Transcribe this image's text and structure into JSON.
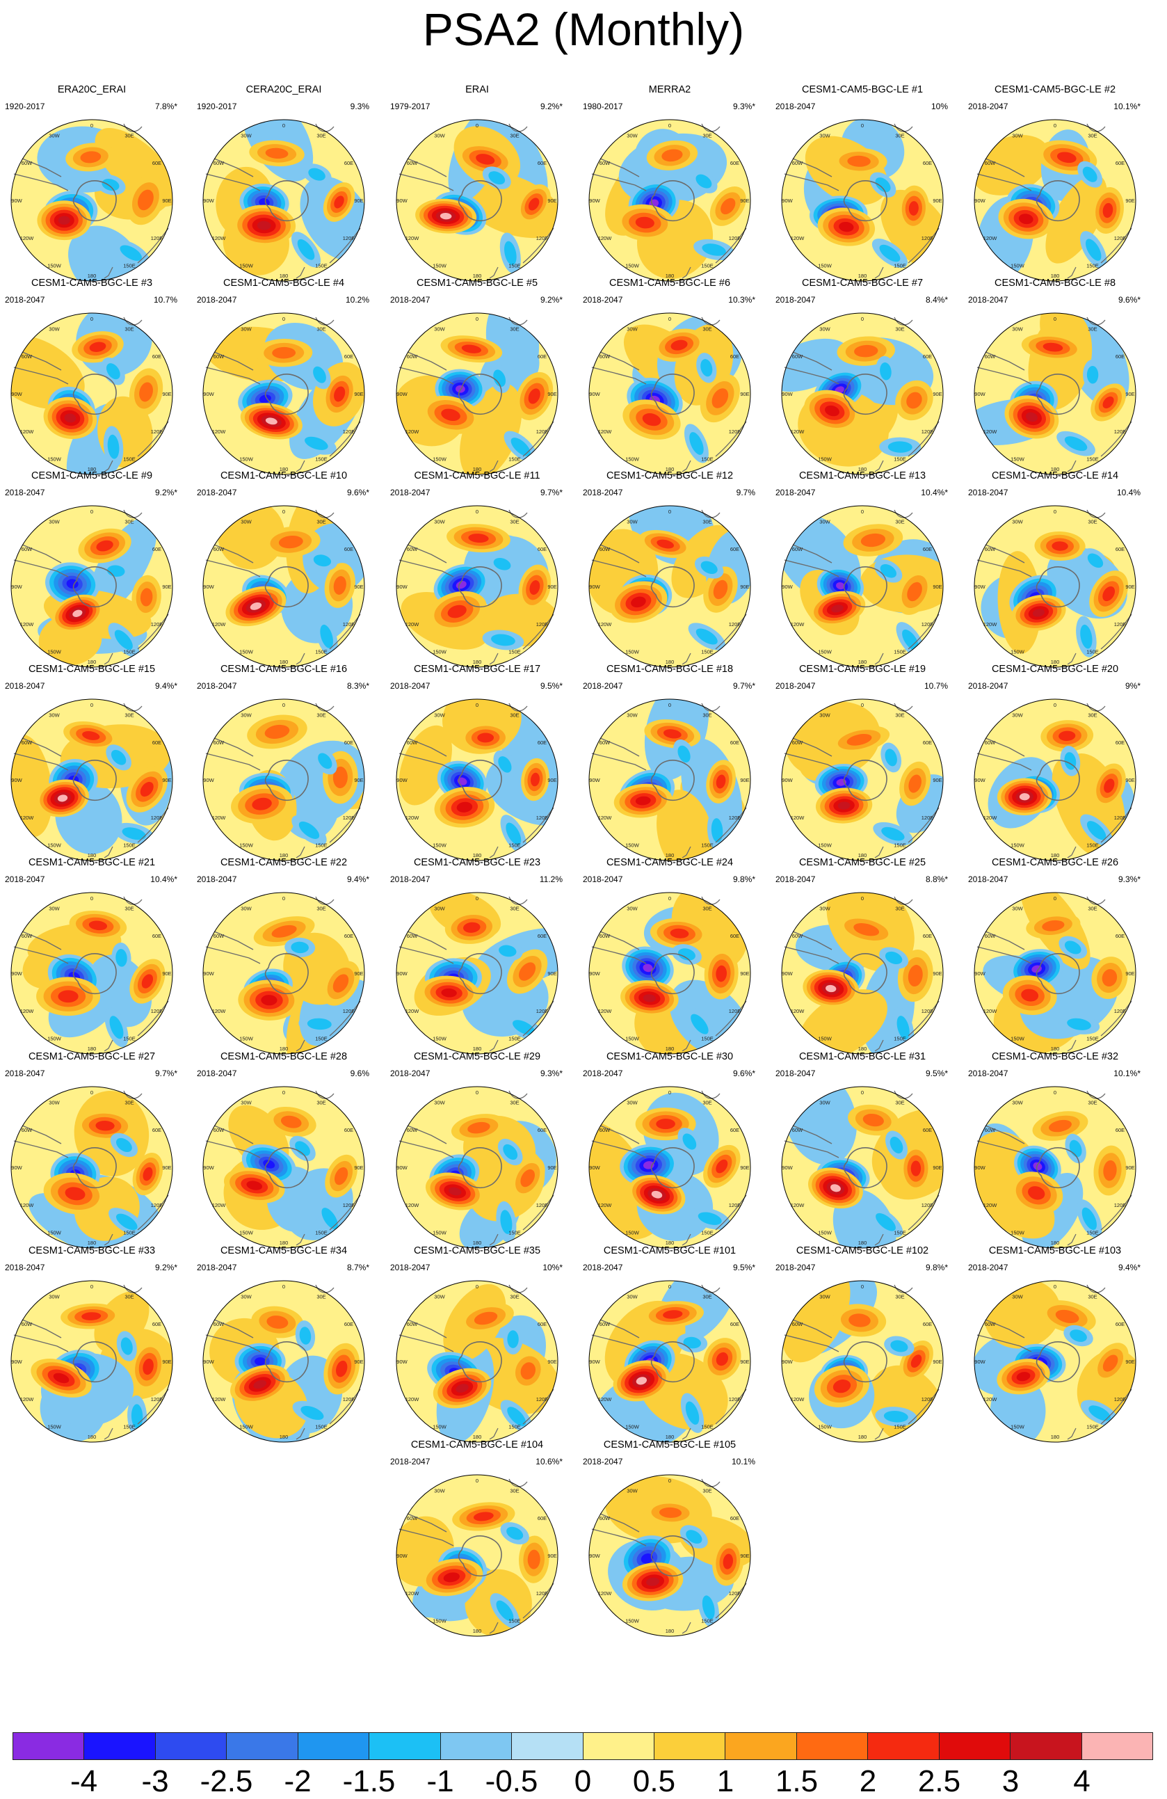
{
  "title": "PSA2 (Monthly)",
  "longitude_labels": [
    "0",
    "30E",
    "60E",
    "90E",
    "120E",
    "150E",
    "180",
    "150W",
    "120W",
    "90W",
    "60W",
    "30W"
  ],
  "colors": {
    "continent_outline": "#6b6b6b",
    "map_border": "#000000"
  },
  "colorbar": {
    "colors": [
      "#8a2be2",
      "#1a14ff",
      "#2e4bf0",
      "#3a78e8",
      "#1f96f0",
      "#1cc0f5",
      "#7ec7f2",
      "#b5e0f5",
      "#fff18a",
      "#fbcf3a",
      "#fba61f",
      "#ff6a12",
      "#f52a10",
      "#e00b0b",
      "#c8141e",
      "#fbb4b4"
    ],
    "tick_labels": [
      "-4",
      "-3",
      "-2.5",
      "-2",
      "-1.5",
      "-1",
      "-0.5",
      "0",
      "0.5",
      "1",
      "1.5",
      "2",
      "2.5",
      "3",
      "4"
    ]
  },
  "panels": [
    {
      "title": "ERA20C_ERAI",
      "period": "1920-2017",
      "pct": "7.8%*"
    },
    {
      "title": "CERA20C_ERAI",
      "period": "1920-2017",
      "pct": "9.3%"
    },
    {
      "title": "ERAI",
      "period": "1979-2017",
      "pct": "9.2%*"
    },
    {
      "title": "MERRA2",
      "period": "1980-2017",
      "pct": "9.3%*"
    },
    {
      "title": "CESM1-CAM5-BGC-LE #1",
      "period": "2018-2047",
      "pct": "10%"
    },
    {
      "title": "CESM1-CAM5-BGC-LE #2",
      "period": "2018-2047",
      "pct": "10.1%*"
    },
    {
      "title": "CESM1-CAM5-BGC-LE #3",
      "period": "2018-2047",
      "pct": "10.7%"
    },
    {
      "title": "CESM1-CAM5-BGC-LE #4",
      "period": "2018-2047",
      "pct": "10.2%"
    },
    {
      "title": "CESM1-CAM5-BGC-LE #5",
      "period": "2018-2047",
      "pct": "9.2%*"
    },
    {
      "title": "CESM1-CAM5-BGC-LE #6",
      "period": "2018-2047",
      "pct": "10.3%*"
    },
    {
      "title": "CESM1-CAM5-BGC-LE #7",
      "period": "2018-2047",
      "pct": "8.4%*"
    },
    {
      "title": "CESM1-CAM5-BGC-LE #8",
      "period": "2018-2047",
      "pct": "9.6%*"
    },
    {
      "title": "CESM1-CAM5-BGC-LE #9",
      "period": "2018-2047",
      "pct": "9.2%*"
    },
    {
      "title": "CESM1-CAM5-BGC-LE #10",
      "period": "2018-2047",
      "pct": "9.6%*"
    },
    {
      "title": "CESM1-CAM5-BGC-LE #11",
      "period": "2018-2047",
      "pct": "9.7%*"
    },
    {
      "title": "CESM1-CAM5-BGC-LE #12",
      "period": "2018-2047",
      "pct": "9.7%"
    },
    {
      "title": "CESM1-CAM5-BGC-LE #13",
      "period": "2018-2047",
      "pct": "10.4%*"
    },
    {
      "title": "CESM1-CAM5-BGC-LE #14",
      "period": "2018-2047",
      "pct": "10.4%"
    },
    {
      "title": "CESM1-CAM5-BGC-LE #15",
      "period": "2018-2047",
      "pct": "9.4%*"
    },
    {
      "title": "CESM1-CAM5-BGC-LE #16",
      "period": "2018-2047",
      "pct": "8.3%*"
    },
    {
      "title": "CESM1-CAM5-BGC-LE #17",
      "period": "2018-2047",
      "pct": "9.5%*"
    },
    {
      "title": "CESM1-CAM5-BGC-LE #18",
      "period": "2018-2047",
      "pct": "9.7%*"
    },
    {
      "title": "CESM1-CAM5-BGC-LE #19",
      "period": "2018-2047",
      "pct": "10.7%"
    },
    {
      "title": "CESM1-CAM5-BGC-LE #20",
      "period": "2018-2047",
      "pct": "9%*"
    },
    {
      "title": "CESM1-CAM5-BGC-LE #21",
      "period": "2018-2047",
      "pct": "10.4%*"
    },
    {
      "title": "CESM1-CAM5-BGC-LE #22",
      "period": "2018-2047",
      "pct": "9.4%*"
    },
    {
      "title": "CESM1-CAM5-BGC-LE #23",
      "period": "2018-2047",
      "pct": "11.2%"
    },
    {
      "title": "CESM1-CAM5-BGC-LE #24",
      "period": "2018-2047",
      "pct": "9.8%*"
    },
    {
      "title": "CESM1-CAM5-BGC-LE #25",
      "period": "2018-2047",
      "pct": "8.8%*"
    },
    {
      "title": "CESM1-CAM5-BGC-LE #26",
      "period": "2018-2047",
      "pct": "9.3%*"
    },
    {
      "title": "CESM1-CAM5-BGC-LE #27",
      "period": "2018-2047",
      "pct": "9.7%*"
    },
    {
      "title": "CESM1-CAM5-BGC-LE #28",
      "period": "2018-2047",
      "pct": "9.6%"
    },
    {
      "title": "CESM1-CAM5-BGC-LE #29",
      "period": "2018-2047",
      "pct": "9.3%*"
    },
    {
      "title": "CESM1-CAM5-BGC-LE #30",
      "period": "2018-2047",
      "pct": "9.6%*"
    },
    {
      "title": "CESM1-CAM5-BGC-LE #31",
      "period": "2018-2047",
      "pct": "9.5%*"
    },
    {
      "title": "CESM1-CAM5-BGC-LE #32",
      "period": "2018-2047",
      "pct": "10.1%*"
    },
    {
      "title": "CESM1-CAM5-BGC-LE #33",
      "period": "2018-2047",
      "pct": "9.2%*"
    },
    {
      "title": "CESM1-CAM5-BGC-LE #34",
      "period": "2018-2047",
      "pct": "8.7%*"
    },
    {
      "title": "CESM1-CAM5-BGC-LE #35",
      "period": "2018-2047",
      "pct": "10%*"
    },
    {
      "title": "CESM1-CAM5-BGC-LE #101",
      "period": "2018-2047",
      "pct": "9.5%*"
    },
    {
      "title": "CESM1-CAM5-BGC-LE #102",
      "period": "2018-2047",
      "pct": "9.8%*"
    },
    {
      "title": "CESM1-CAM5-BGC-LE #103",
      "period": "2018-2047",
      "pct": "9.4%*"
    },
    {
      "title": "CESM1-CAM5-BGC-LE #104",
      "period": "2018-2047",
      "pct": "10.6%*"
    },
    {
      "title": "CESM1-CAM5-BGC-LE #105",
      "period": "2018-2047",
      "pct": "10.1%"
    }
  ]
}
